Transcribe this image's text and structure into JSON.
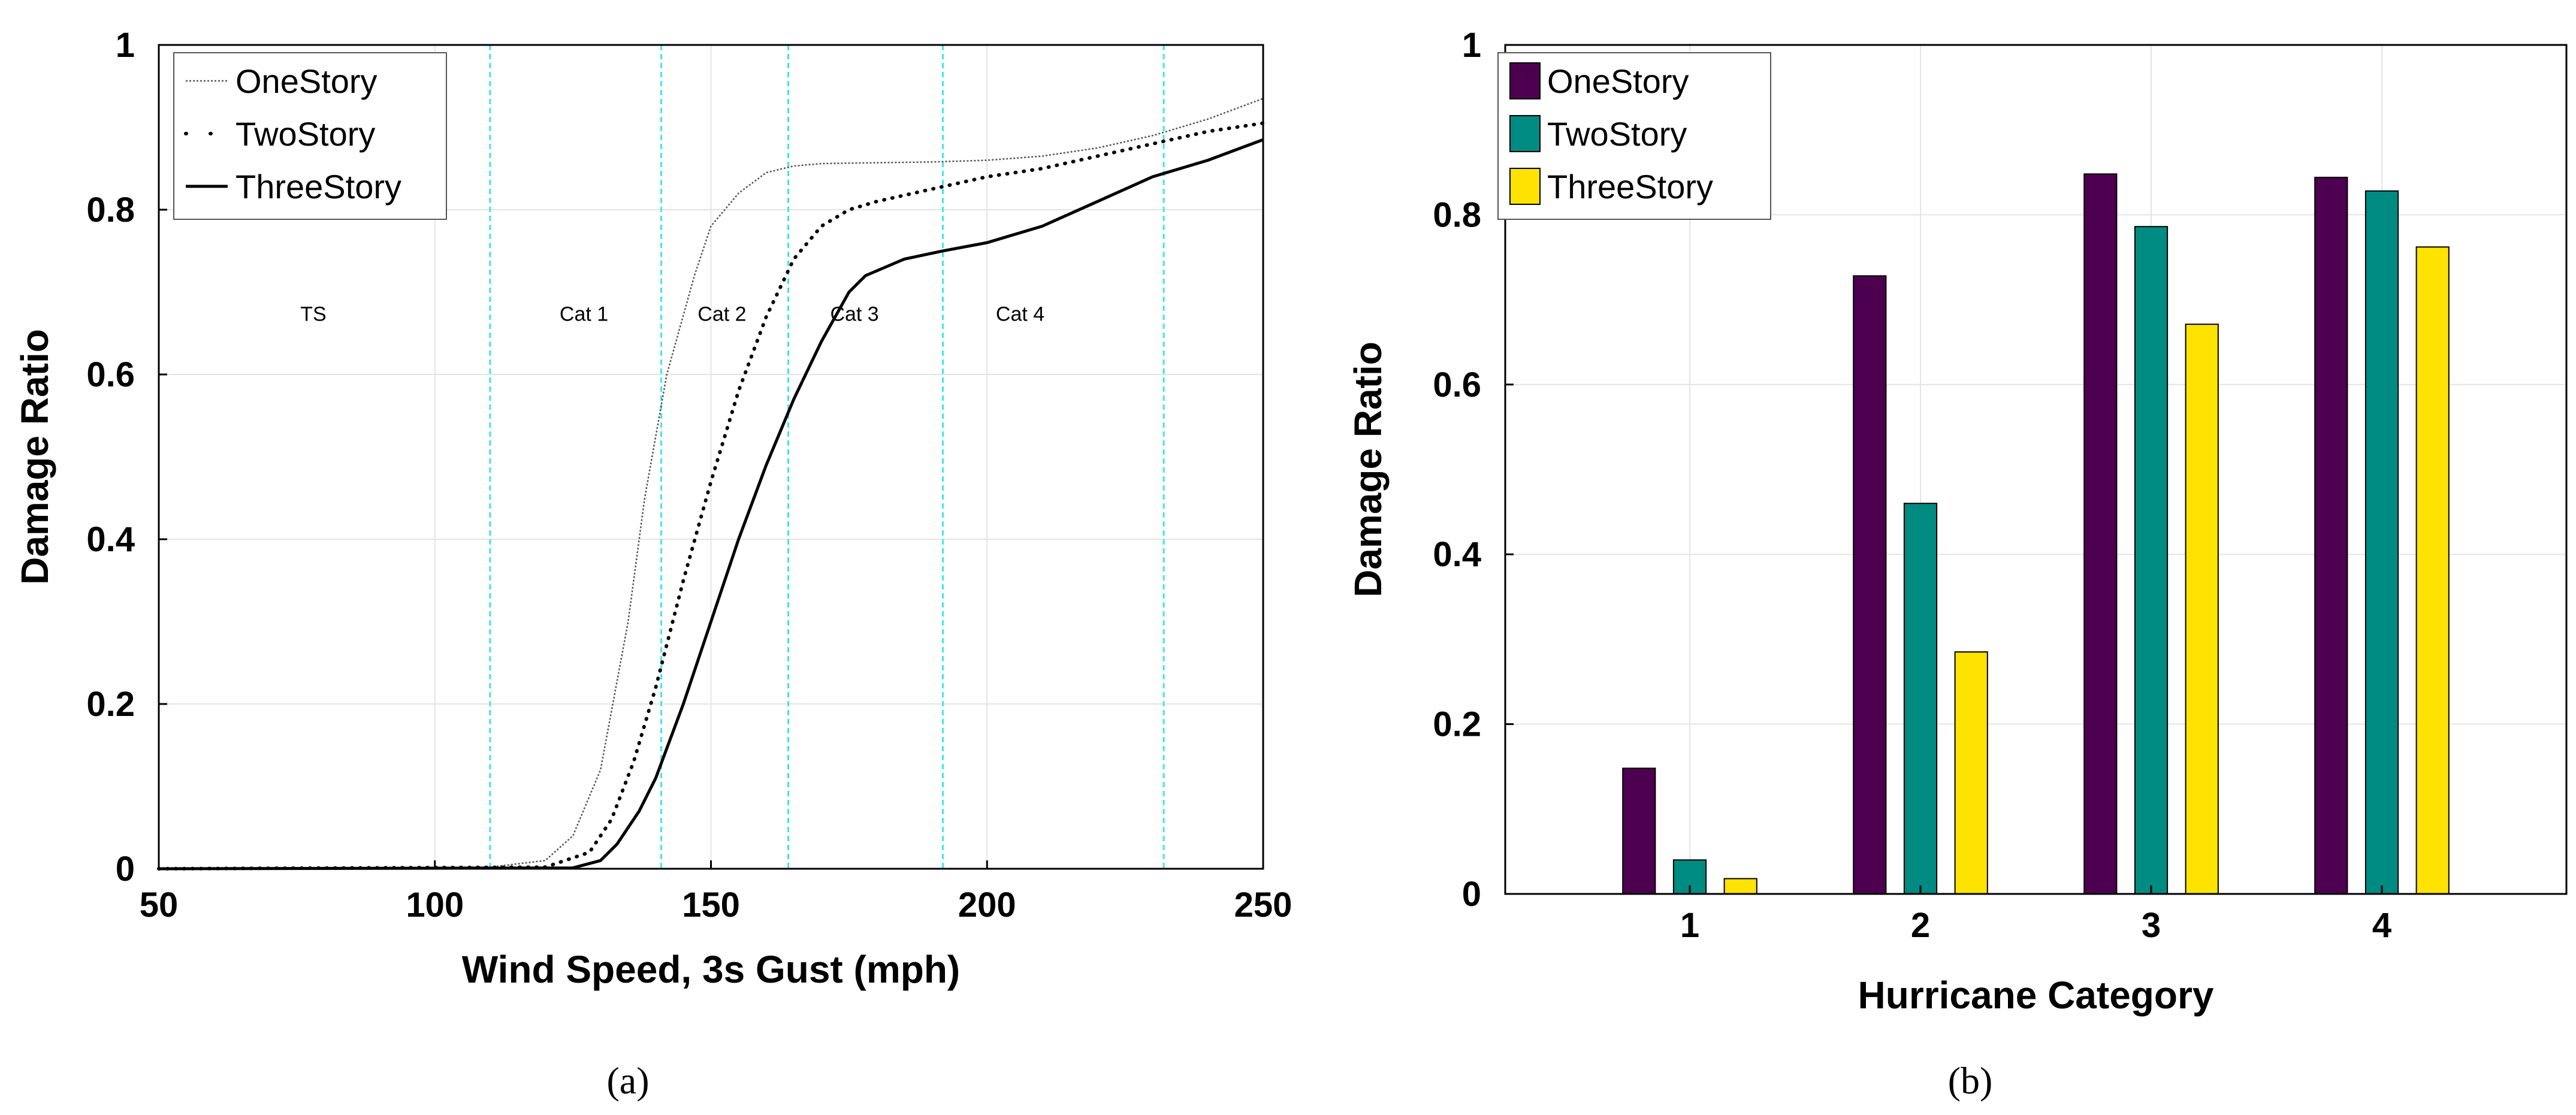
{
  "chart_data": [
    {
      "type": "line",
      "panel_label": "a",
      "xlabel": "Wind Speed, 3s Gust (mph)",
      "ylabel": "Damage Ratio",
      "xlim": [
        50,
        250
      ],
      "ylim": [
        0,
        1
      ],
      "xticks": [
        "50",
        "100",
        "150",
        "200",
        "250"
      ],
      "yticks": [
        "0",
        "0.2",
        "0.4",
        "0.6",
        "0.8",
        "1"
      ],
      "grid": true,
      "legend_position": "top-left",
      "category_boundaries": [
        110,
        141,
        164,
        192,
        232
      ],
      "category_labels": [
        {
          "text": "TS",
          "x": 78
        },
        {
          "text": "Cat 1",
          "x": 127
        },
        {
          "text": "Cat 2",
          "x": 152
        },
        {
          "text": "Cat 3",
          "x": 176
        },
        {
          "text": "Cat 4",
          "x": 206
        }
      ],
      "series": [
        {
          "name": "OneStory",
          "style": "thin-dotted",
          "x": [
            50,
            110,
            120,
            125,
            130,
            135,
            138,
            142,
            147,
            150,
            155,
            160,
            165,
            170,
            180,
            190,
            200,
            210,
            220,
            230,
            240,
            250
          ],
          "y": [
            0,
            0.002,
            0.01,
            0.04,
            0.12,
            0.3,
            0.45,
            0.6,
            0.72,
            0.78,
            0.82,
            0.845,
            0.853,
            0.856,
            0.857,
            0.858,
            0.86,
            0.865,
            0.875,
            0.89,
            0.91,
            0.935
          ]
        },
        {
          "name": "TwoStory",
          "style": "dotted",
          "x": [
            50,
            120,
            128,
            132,
            136,
            140,
            145,
            150,
            155,
            160,
            165,
            170,
            175,
            180,
            190,
            200,
            210,
            220,
            230,
            240,
            250
          ],
          "y": [
            0,
            0.002,
            0.02,
            0.06,
            0.13,
            0.22,
            0.35,
            0.47,
            0.58,
            0.67,
            0.74,
            0.78,
            0.8,
            0.81,
            0.825,
            0.84,
            0.85,
            0.865,
            0.88,
            0.895,
            0.905
          ]
        },
        {
          "name": "ThreeStory",
          "style": "solid",
          "x": [
            50,
            125,
            130,
            133,
            137,
            140,
            145,
            150,
            155,
            160,
            165,
            170,
            175,
            178,
            185,
            192,
            200,
            210,
            220,
            230,
            240,
            250
          ],
          "y": [
            0,
            0.001,
            0.01,
            0.03,
            0.07,
            0.11,
            0.2,
            0.3,
            0.4,
            0.49,
            0.57,
            0.64,
            0.7,
            0.72,
            0.74,
            0.75,
            0.76,
            0.78,
            0.81,
            0.84,
            0.86,
            0.885
          ]
        }
      ]
    },
    {
      "type": "bar",
      "panel_label": "b",
      "xlabel": "Hurricane Category",
      "ylabel": "Damage Ratio",
      "ylim": [
        0,
        1
      ],
      "xlim": [
        0.2,
        4.8
      ],
      "categories": [
        "1",
        "2",
        "3",
        "4"
      ],
      "yticks": [
        "0",
        "0.2",
        "0.4",
        "0.6",
        "0.8",
        "1"
      ],
      "grid": true,
      "legend_position": "top-left",
      "series": [
        {
          "name": "OneStory",
          "color": "#4d004f",
          "values": [
            0.148,
            0.728,
            0.848,
            0.844
          ]
        },
        {
          "name": "TwoStory",
          "color": "#008b82",
          "values": [
            0.04,
            0.46,
            0.786,
            0.828
          ]
        },
        {
          "name": "ThreeStory",
          "color": "#ffe300",
          "values": [
            0.018,
            0.285,
            0.671,
            0.762
          ]
        }
      ]
    }
  ]
}
